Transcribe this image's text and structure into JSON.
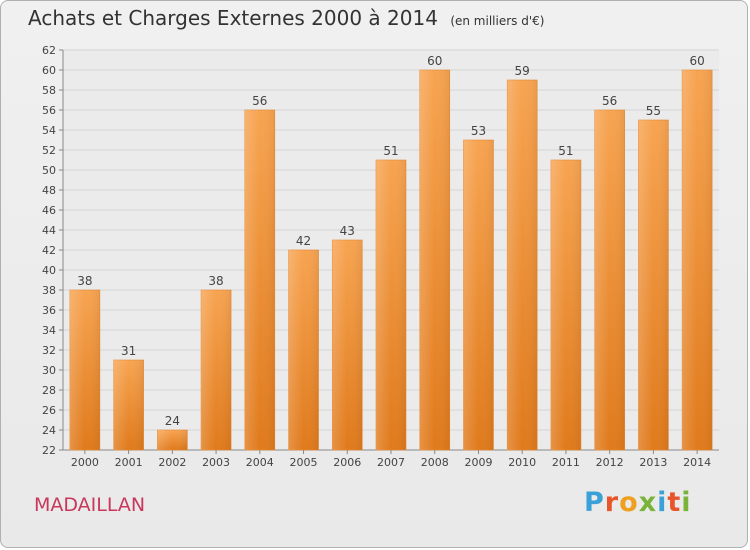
{
  "header": {
    "title": "Achats et Charges Externes 2000 à 2014",
    "unit": "(en milliers d'€)"
  },
  "footer": {
    "commune": "MADAILLAN",
    "logo_text": "Proxiti",
    "logo_colors": [
      "#3aa0d8",
      "#e8552a",
      "#f0a020",
      "#7ab33a",
      "#3aa0d8",
      "#e8552a",
      "#7ab33a"
    ]
  },
  "chart_data": {
    "type": "bar",
    "title": "Achats et Charges Externes 2000 à 2014",
    "subtitle": "(en milliers d'€)",
    "categories": [
      "2000",
      "2001",
      "2002",
      "2003",
      "2004",
      "2005",
      "2006",
      "2007",
      "2008",
      "2009",
      "2010",
      "2011",
      "2012",
      "2013",
      "2014"
    ],
    "values": [
      38,
      31,
      24,
      38,
      56,
      42,
      43,
      51,
      60,
      53,
      59,
      51,
      56,
      55,
      60
    ],
    "ylim": [
      22,
      62
    ],
    "yticks": [
      22,
      24,
      26,
      28,
      30,
      32,
      34,
      36,
      38,
      40,
      42,
      44,
      46,
      48,
      50,
      52,
      54,
      56,
      58,
      60,
      62
    ],
    "grid": true,
    "bar_color_top": "#f7a451",
    "bar_color_bottom": "#e07a1c"
  }
}
